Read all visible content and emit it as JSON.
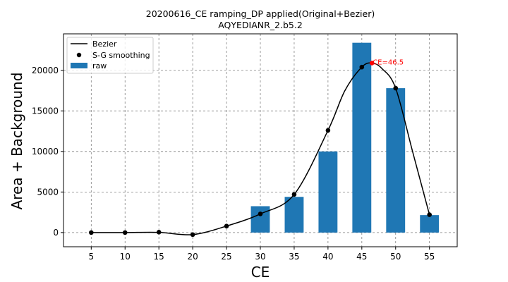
{
  "chart_data": {
    "type": "bar",
    "title": "20200616_CE ramping_DP applied(Original+Bezier)",
    "subtitle": "AQYEDIANR_2.b5.2",
    "xlabel": "CE",
    "ylabel": "Area + Background",
    "xlim": [
      0.9,
      59.1
    ],
    "ylim": [
      -1750,
      24500
    ],
    "xticks": [
      5,
      10,
      15,
      20,
      25,
      30,
      35,
      40,
      45,
      50,
      55
    ],
    "yticks": [
      0,
      5000,
      10000,
      15000,
      20000
    ],
    "grid": true,
    "legend_position": "top-left",
    "bar_width": 2.8,
    "colors": {
      "bar": "#1f77b4",
      "line": "#000000",
      "points": "#000000",
      "annotation": "#ff0000"
    },
    "series": [
      {
        "name": "raw",
        "type": "bar",
        "x": [
          30,
          35,
          40,
          45,
          50,
          55
        ],
        "values": [
          3250,
          4400,
          10000,
          23400,
          17800,
          2150
        ]
      },
      {
        "name": "S-G smoothing",
        "type": "scatter",
        "x": [
          5,
          10,
          15,
          20,
          25,
          30,
          35,
          40,
          45,
          50,
          55
        ],
        "values": [
          0,
          0,
          50,
          -250,
          800,
          2300,
          4700,
          12600,
          20400,
          17800,
          2200
        ]
      },
      {
        "name": "Bezier",
        "type": "line",
        "x": [
          5,
          10,
          15,
          20,
          25,
          30,
          35,
          40,
          42.5,
          45,
          46.5,
          48,
          50,
          52.5,
          55
        ],
        "values": [
          0,
          0,
          20,
          -250,
          800,
          2300,
          4700,
          12600,
          17500,
          20400,
          20900,
          20200,
          17800,
          10000,
          2200
        ]
      }
    ],
    "annotations": [
      {
        "text": "CE=46.5",
        "x": 46.5,
        "y": 20900
      }
    ]
  }
}
